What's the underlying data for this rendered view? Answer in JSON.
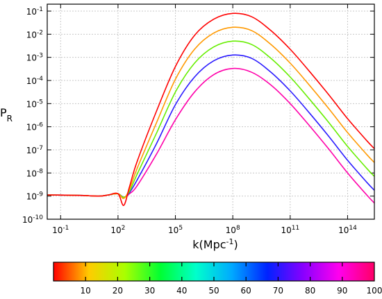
{
  "chart_data": {
    "type": "line",
    "xlabel": "k(Mpc",
    "xlabel_sup": "-1",
    "xlabel_end": ")",
    "ylabel": "P",
    "ylabel_sub": "R",
    "x_scale": "log10",
    "y_scale": "log10",
    "xlim_exp": [
      -1.7,
      15.4
    ],
    "ylim_exp": [
      -10,
      -0.7
    ],
    "grid": true,
    "x_ticks": [
      {
        "base": "10",
        "exp": "-1",
        "value_exp": -1
      },
      {
        "base": "10",
        "exp": "2",
        "value_exp": 2
      },
      {
        "base": "10",
        "exp": "5",
        "value_exp": 5
      },
      {
        "base": "10",
        "exp": "8",
        "value_exp": 8
      },
      {
        "base": "10",
        "exp": "11",
        "value_exp": 11
      },
      {
        "base": "10",
        "exp": "14",
        "value_exp": 14
      }
    ],
    "y_ticks": [
      {
        "base": "10",
        "exp": "-1",
        "value_exp": -1
      },
      {
        "base": "10",
        "exp": "-2",
        "value_exp": -2
      },
      {
        "base": "10",
        "exp": "-3",
        "value_exp": -3
      },
      {
        "base": "10",
        "exp": "-4",
        "value_exp": -4
      },
      {
        "base": "10",
        "exp": "-5",
        "value_exp": -5
      },
      {
        "base": "10",
        "exp": "-6",
        "value_exp": -6
      },
      {
        "base": "10",
        "exp": "-7",
        "value_exp": -7
      },
      {
        "base": "10",
        "exp": "-8",
        "value_exp": -8
      },
      {
        "base": "10",
        "exp": "-9",
        "value_exp": -9
      },
      {
        "base": "10",
        "exp": "-10",
        "value_exp": -10
      }
    ],
    "series": [
      {
        "color": "#ff00aa",
        "log_x": [
          -1.7,
          0,
          1,
          1.5,
          2,
          2.3,
          2.6,
          3,
          4,
          5,
          6,
          7,
          8,
          9,
          10,
          11,
          12,
          13,
          14,
          15,
          15.4
        ],
        "log_y": [
          -8.95,
          -8.97,
          -9.0,
          -8.95,
          -8.9,
          -9.05,
          -8.9,
          -8.55,
          -7.2,
          -5.7,
          -4.5,
          -3.75,
          -3.48,
          -3.65,
          -4.2,
          -5.0,
          -5.95,
          -6.95,
          -8.0,
          -8.95,
          -9.3
        ]
      },
      {
        "color": "#2a1aff",
        "log_x": [
          -1.7,
          0,
          1,
          1.5,
          2,
          2.3,
          2.6,
          3,
          4,
          5,
          6,
          7,
          8,
          9,
          10,
          11,
          12,
          13,
          14,
          15,
          15.4
        ],
        "log_y": [
          -8.95,
          -8.97,
          -9.0,
          -8.95,
          -8.9,
          -9.05,
          -8.85,
          -8.3,
          -6.75,
          -5.05,
          -3.85,
          -3.15,
          -2.9,
          -3.05,
          -3.65,
          -4.45,
          -5.4,
          -6.4,
          -7.45,
          -8.4,
          -8.75
        ]
      },
      {
        "color": "#66ee00",
        "log_x": [
          -1.7,
          0,
          1,
          1.5,
          2,
          2.3,
          2.6,
          3,
          4,
          5,
          6,
          7,
          8,
          9,
          10,
          11,
          12,
          13,
          14,
          15,
          15.4
        ],
        "log_y": [
          -8.95,
          -8.97,
          -9.0,
          -8.95,
          -8.9,
          -9.05,
          -8.8,
          -8.05,
          -6.3,
          -4.5,
          -3.25,
          -2.55,
          -2.3,
          -2.45,
          -3.05,
          -3.85,
          -4.8,
          -5.8,
          -6.85,
          -7.8,
          -8.15
        ]
      },
      {
        "color": "#ff9900",
        "log_x": [
          -1.7,
          0,
          1,
          1.5,
          2,
          2.3,
          2.6,
          3,
          4,
          5,
          6,
          7,
          8,
          9,
          10,
          11,
          12,
          13,
          14,
          15,
          15.4
        ],
        "log_y": [
          -8.95,
          -8.97,
          -9.0,
          -8.95,
          -8.9,
          -9.1,
          -8.7,
          -7.8,
          -5.85,
          -3.95,
          -2.65,
          -1.95,
          -1.7,
          -1.85,
          -2.45,
          -3.25,
          -4.2,
          -5.2,
          -6.25,
          -7.2,
          -7.55
        ]
      },
      {
        "color": "#ff0000",
        "log_x": [
          -1.7,
          0,
          1,
          1.5,
          2,
          2.3,
          2.6,
          3,
          4,
          5,
          6,
          7,
          8,
          9,
          10,
          11,
          12,
          13,
          14,
          15,
          15.4
        ],
        "log_y": [
          -8.95,
          -8.97,
          -9.0,
          -8.95,
          -8.9,
          -9.4,
          -8.6,
          -7.5,
          -5.35,
          -3.4,
          -2.05,
          -1.35,
          -1.1,
          -1.25,
          -1.85,
          -2.65,
          -3.6,
          -4.6,
          -5.65,
          -6.6,
          -6.95
        ]
      }
    ],
    "colorbar": {
      "min": 0,
      "max": 100,
      "tick_labels": [
        "10",
        "20",
        "30",
        "40",
        "50",
        "60",
        "70",
        "80",
        "90",
        "100"
      ],
      "tick_values": [
        10,
        20,
        30,
        40,
        50,
        60,
        70,
        80,
        90,
        100
      ],
      "stops": [
        "#ff0000",
        "#ffcc00",
        "#aaff00",
        "#00ff33",
        "#00ffcc",
        "#00aaff",
        "#0022ff",
        "#8800ff",
        "#ff00ee",
        "#ff0066"
      ]
    }
  }
}
